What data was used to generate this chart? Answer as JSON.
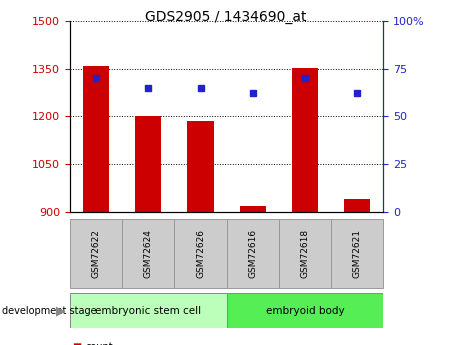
{
  "title": "GDS2905 / 1434690_at",
  "samples": [
    "GSM72622",
    "GSM72624",
    "GSM72626",
    "GSM72616",
    "GSM72618",
    "GSM72621"
  ],
  "counts": [
    1358,
    1202,
    1185,
    920,
    1352,
    942
  ],
  "percentile_ranks": [
    70,
    65,
    65,
    62,
    70,
    62
  ],
  "ylim_left": [
    900,
    1500
  ],
  "ylim_right": [
    0,
    100
  ],
  "yticks_left": [
    900,
    1050,
    1200,
    1350,
    1500
  ],
  "yticks_right": [
    0,
    25,
    50,
    75,
    100
  ],
  "bar_color": "#cc0000",
  "dot_color": "#2222cc",
  "groups": [
    {
      "label": "embryonic stem cell",
      "n": 3,
      "color": "#bbffbb"
    },
    {
      "label": "embryoid body",
      "n": 3,
      "color": "#55ee55"
    }
  ],
  "group_label_prefix": "development stage",
  "tick_label_color_left": "#cc0000",
  "tick_label_color_right": "#2222cc",
  "grid_color": "#000000",
  "sample_box_color": "#cccccc",
  "sample_box_edge": "#999999",
  "bar_width": 0.5
}
